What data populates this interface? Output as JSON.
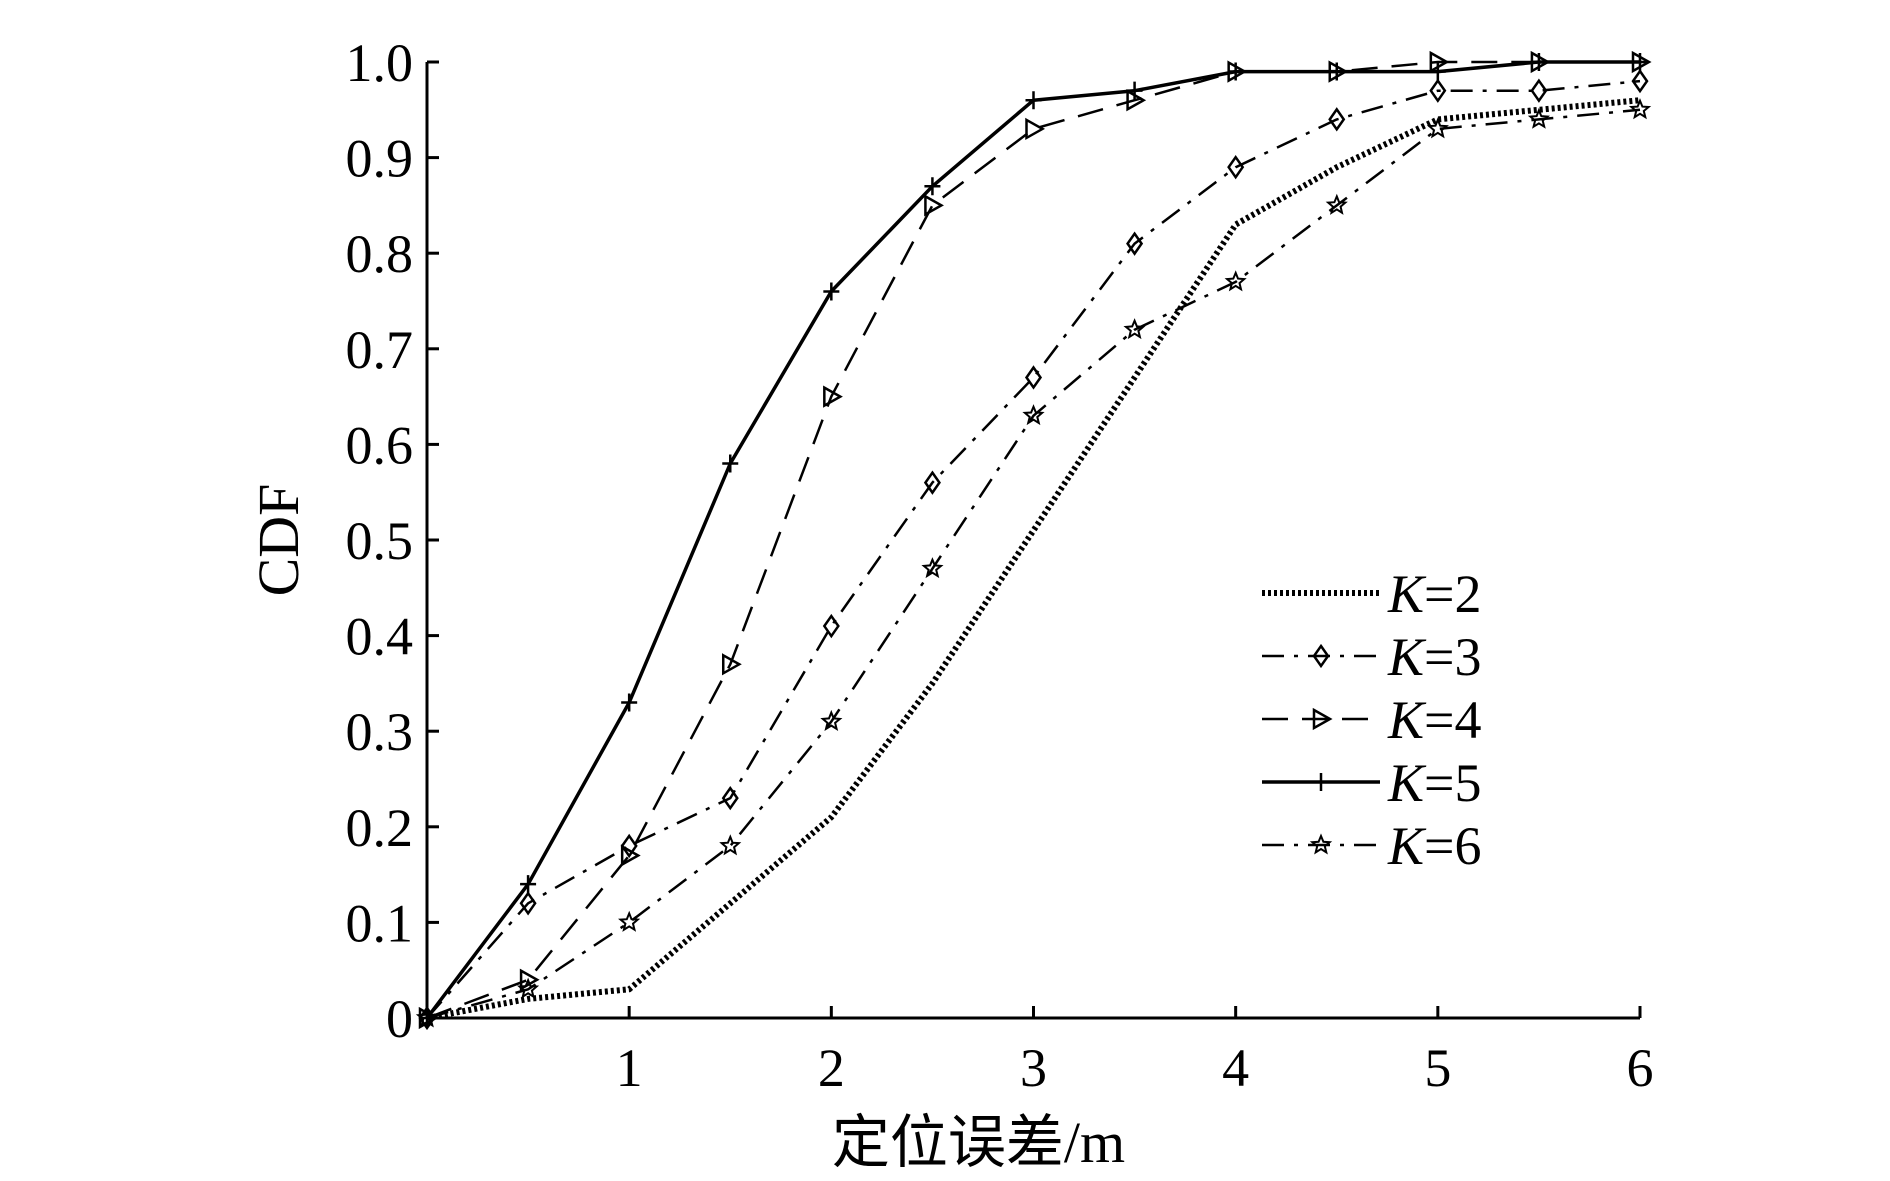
{
  "chart_data": {
    "type": "line",
    "title": "",
    "xlabel": "定位误差/m",
    "ylabel": "CDF",
    "xlim": [
      0,
      6
    ],
    "ylim": [
      0,
      1
    ],
    "x_ticks": [
      1,
      2,
      3,
      4,
      5,
      6
    ],
    "y_ticks": [
      "0",
      "0.1",
      "0.2",
      "0.3",
      "0.4",
      "0.5",
      "0.6",
      "0.7",
      "0.8",
      "0.9",
      "1.0"
    ],
    "grid": false,
    "legend_position": "right",
    "x": [
      0,
      0.5,
      1,
      1.5,
      2,
      2.5,
      3,
      3.5,
      4,
      4.5,
      5,
      5.5,
      6
    ],
    "series": [
      {
        "name": "K=2",
        "name_var": "K",
        "name_val": "=2",
        "style": "dotted",
        "marker": "none",
        "values": [
          0,
          0.02,
          0.03,
          0.12,
          0.21,
          0.35,
          0.51,
          0.67,
          0.83,
          0.89,
          0.94,
          0.95,
          0.96
        ]
      },
      {
        "name": "K=3",
        "name_var": "K",
        "name_val": "=3",
        "style": "dashdot",
        "marker": "diamond",
        "values": [
          0,
          0.12,
          0.18,
          0.23,
          0.41,
          0.56,
          0.67,
          0.81,
          0.89,
          0.94,
          0.97,
          0.97,
          0.98
        ]
      },
      {
        "name": "K=4",
        "name_var": "K",
        "name_val": "=4",
        "style": "dashed",
        "marker": "triangle-right",
        "values": [
          0,
          0.04,
          0.17,
          0.37,
          0.65,
          0.85,
          0.93,
          0.96,
          0.99,
          0.99,
          1.0,
          1.0,
          1.0
        ]
      },
      {
        "name": "K=5",
        "name_var": "K",
        "name_val": "=5",
        "style": "solid",
        "marker": "plus",
        "values": [
          0,
          0.14,
          0.33,
          0.58,
          0.76,
          0.87,
          0.96,
          0.97,
          0.99,
          0.99,
          0.99,
          1.0,
          1.0
        ]
      },
      {
        "name": "K=6",
        "name_var": "K",
        "name_val": "=6",
        "style": "dashdot",
        "marker": "star",
        "values": [
          0,
          0.03,
          0.1,
          0.18,
          0.31,
          0.47,
          0.63,
          0.72,
          0.77,
          0.85,
          0.93,
          0.94,
          0.95
        ]
      }
    ]
  }
}
